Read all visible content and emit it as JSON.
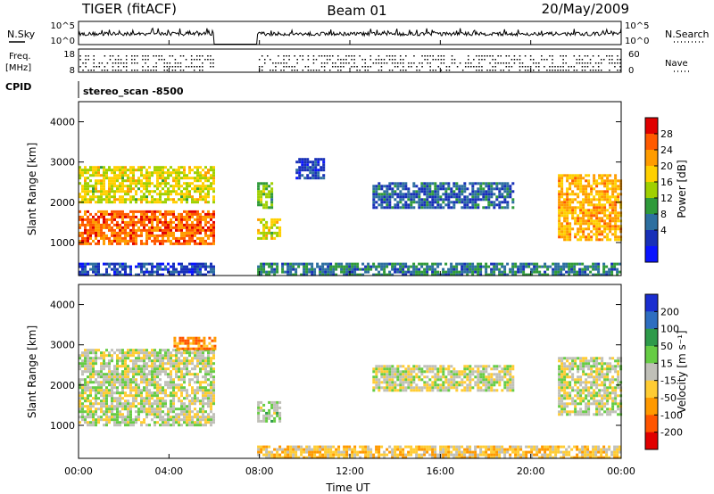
{
  "header": {
    "radar": "TIGER (fitACF)",
    "beam": "Beam 01",
    "date": "20/May/2009"
  },
  "left_labels": {
    "nsky": "N.Sky",
    "freq": "Freq.",
    "freq_unit": "[MHz]",
    "cpid": "CPID"
  },
  "right_labels": {
    "nsearch": "N.Search",
    "nave": "Nave"
  },
  "mode_text": "stereo_scan -8500",
  "noise_axis": {
    "top": "10^5",
    "bottom": "10^0"
  },
  "freq_axis": {
    "left_ticks": [
      "18",
      "8"
    ],
    "right_ticks": [
      "60",
      "0"
    ]
  },
  "range_ticks": [
    "4000",
    "3000",
    "2000",
    "1000"
  ],
  "range_label": "Slant Range [km]",
  "time_ticks": [
    "00:00",
    "04:00",
    "08:00",
    "12:00",
    "16:00",
    "20:00",
    "00:00"
  ],
  "time_label": "Time UT",
  "power_scale": {
    "label": "Power [dB]",
    "ticks": [
      "28",
      "24",
      "20",
      "16",
      "12",
      "8",
      "4"
    ],
    "colors": [
      "#e00000",
      "#ff5a00",
      "#ff9c00",
      "#ffd000",
      "#a0d000",
      "#2f9a3a",
      "#2d6fa0",
      "#1830b8",
      "#0a14ff"
    ]
  },
  "velocity_scale": {
    "label": "Velocity [m s⁻¹]",
    "ticks": [
      "200",
      "100",
      "50",
      "15",
      "-15",
      "-50",
      "-100",
      "-200"
    ],
    "colors": [
      "#1a2ed0",
      "#2e6ec0",
      "#2e9a4a",
      "#66cc44",
      "#c0c0b8",
      "#ffcc33",
      "#ff9900",
      "#ff5500",
      "#e00000"
    ]
  },
  "chart_data": {
    "type": "heatmap",
    "title": "Beam 01",
    "xlabel": "Time UT",
    "ylabel": "Slant Range [km]",
    "xlim": [
      "00:00",
      "24:00"
    ],
    "ylim": [
      180,
      4500
    ],
    "data_gap": [
      "06:00",
      "07:50"
    ],
    "panels": [
      {
        "name": "Power [dB]",
        "colorbar_range": [
          0,
          32
        ],
        "regions": [
          {
            "t": [
              0.0,
              6.0
            ],
            "range_km": [
              1000,
              1800
            ],
            "value": 26
          },
          {
            "t": [
              0.0,
              6.0
            ],
            "range_km": [
              2000,
              2900
            ],
            "value": 18
          },
          {
            "t": [
              7.9,
              8.9
            ],
            "range_km": [
              1100,
              1600
            ],
            "value": 18
          },
          {
            "t": [
              7.9,
              8.5
            ],
            "range_km": [
              1900,
              2500
            ],
            "value": 14
          },
          {
            "t": [
              9.6,
              10.8
            ],
            "range_km": [
              2600,
              3100
            ],
            "value": 6
          },
          {
            "t": [
              13.0,
              19.2
            ],
            "range_km": [
              1900,
              2500
            ],
            "value": 8
          },
          {
            "t": [
              21.2,
              24.0
            ],
            "range_km": [
              1100,
              2700
            ],
            "value": 22
          },
          {
            "t": [
              7.9,
              24.0
            ],
            "range_km": [
              200,
              500
            ],
            "value": 10
          },
          {
            "t": [
              0.0,
              6.0
            ],
            "range_km": [
              200,
              500
            ],
            "value": 6
          }
        ]
      },
      {
        "name": "Velocity [m s-1]",
        "colorbar_range": [
          -250,
          250
        ],
        "regions": [
          {
            "t": [
              0.0,
              6.0
            ],
            "range_km": [
              1000,
              2900
            ],
            "value": 0
          },
          {
            "t": [
              4.2,
              6.0
            ],
            "range_km": [
              2900,
              3200
            ],
            "value": -120
          },
          {
            "t": [
              7.9,
              8.9
            ],
            "range_km": [
              1100,
              1600
            ],
            "value": 30
          },
          {
            "t": [
              13.0,
              19.2
            ],
            "range_km": [
              1900,
              2500
            ],
            "value": -5
          },
          {
            "t": [
              21.2,
              24.0
            ],
            "range_km": [
              1300,
              2700
            ],
            "value": 0
          },
          {
            "t": [
              7.9,
              24.0
            ],
            "range_km": [
              200,
              500
            ],
            "value": -60
          }
        ]
      }
    ]
  }
}
